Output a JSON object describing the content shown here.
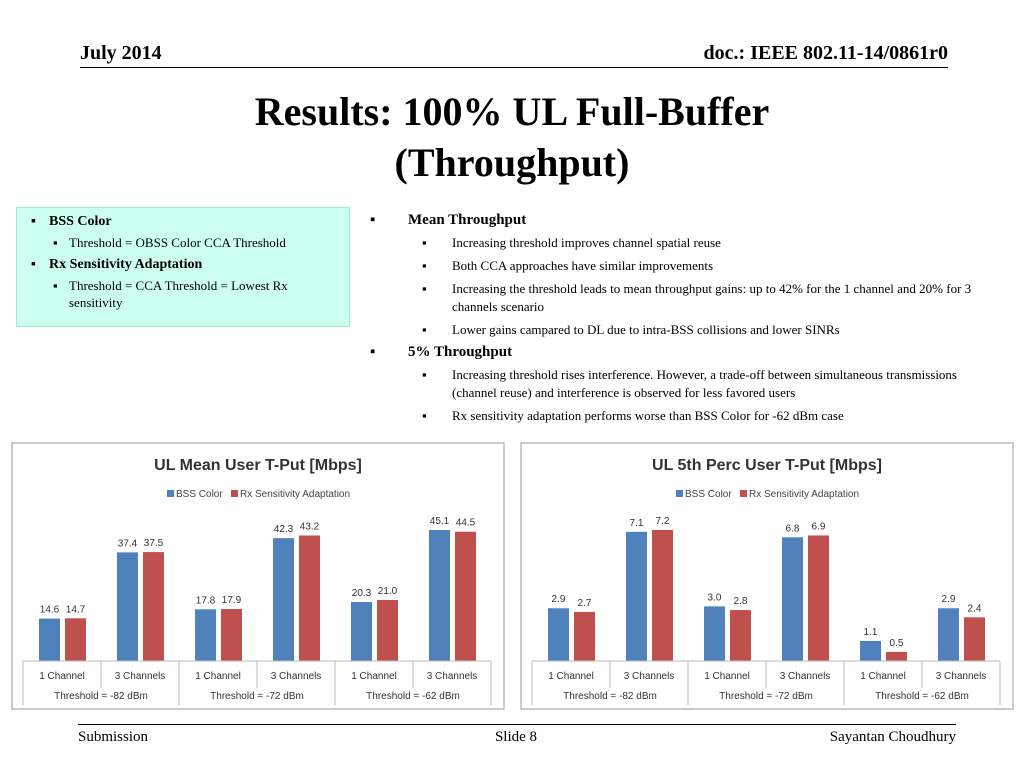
{
  "header": {
    "date": "July 2014",
    "doc": "doc.: IEEE 802.11-14/0861r0"
  },
  "title_lines": [
    "Results: 100% UL Full-Buffer",
    "(Throughput)"
  ],
  "left_box": [
    {
      "text": "BSS Color",
      "sub": [
        "Threshold = OBSS Color CCA Threshold"
      ]
    },
    {
      "text": "Rx Sensitivity Adaptation",
      "sub": [
        "Threshold = CCA Threshold = Lowest Rx sensitivity"
      ]
    }
  ],
  "right_bullets": [
    {
      "text": "Mean Throughput",
      "sub": [
        "Increasing threshold improves channel spatial reuse",
        "Both CCA approaches have similar improvements",
        "Increasing the threshold leads to mean throughput gains: up to 42% for the 1 channel and 20% for 3 channels scenario",
        "Lower gains campared to DL due to intra-BSS collisions and lower SINRs"
      ]
    },
    {
      "text": "5% Throughput",
      "sub": [
        "Increasing threshold rises interference. However, a trade-off between simultaneous transmissions (channel reuse) and interference is observed for less favored users",
        "Rx sensitivity adaptation performs worse than BSS Color for  -62 dBm case"
      ]
    }
  ],
  "chart_data": [
    {
      "type": "bar",
      "title": "UL Mean User T-Put [Mbps]",
      "categories": [
        "1 Channel",
        "3 Channels",
        "1 Channel",
        "3 Channels",
        "1 Channel",
        "3 Channels"
      ],
      "groups": [
        "Threshold = -82 dBm",
        "Threshold = -72 dBm",
        "Threshold = -62 dBm"
      ],
      "series": [
        {
          "name": "BSS Color",
          "color": "#4f81bd",
          "values": [
            14.6,
            37.4,
            17.8,
            42.3,
            20.3,
            45.1
          ],
          "value_labels": [
            "14.6",
            "37.4",
            "17.8",
            "42.3",
            "20.3",
            "45.1"
          ]
        },
        {
          "name": "Rx Sensitivity Adaptation",
          "color": "#c0504d",
          "values": [
            14.7,
            37.5,
            17.9,
            43.2,
            21.0,
            44.5
          ],
          "value_labels": [
            "14.7",
            "37.5",
            "17.9",
            "43.2",
            "21.0",
            "44.5"
          ]
        }
      ]
    },
    {
      "type": "bar",
      "title": "UL 5th Perc User T-Put [Mbps]",
      "categories": [
        "1 Channel",
        "3 Channels",
        "1 Channel",
        "3 Channels",
        "1 Channel",
        "3 Channels"
      ],
      "groups": [
        "Threshold = -82 dBm",
        "Threshold = -72 dBm",
        "Threshold = -62 dBm"
      ],
      "series": [
        {
          "name": "BSS Color",
          "color": "#4f81bd",
          "values": [
            2.9,
            7.1,
            3.0,
            6.8,
            1.1,
            2.9
          ],
          "value_labels": [
            "2.9",
            "7.1",
            "3.0",
            "6.8",
            "1.1",
            "2.9"
          ]
        },
        {
          "name": "Rx Sensitivity Adaptation",
          "color": "#c0504d",
          "values": [
            2.7,
            7.2,
            2.8,
            6.9,
            0.5,
            2.4
          ],
          "value_labels": [
            "2.7",
            "7.2",
            "2.8",
            "6.9",
            "0.5",
            "2.4"
          ]
        }
      ]
    }
  ],
  "footer": {
    "left": "Submission",
    "center": "Slide 8",
    "right": "Sayantan Choudhury"
  }
}
